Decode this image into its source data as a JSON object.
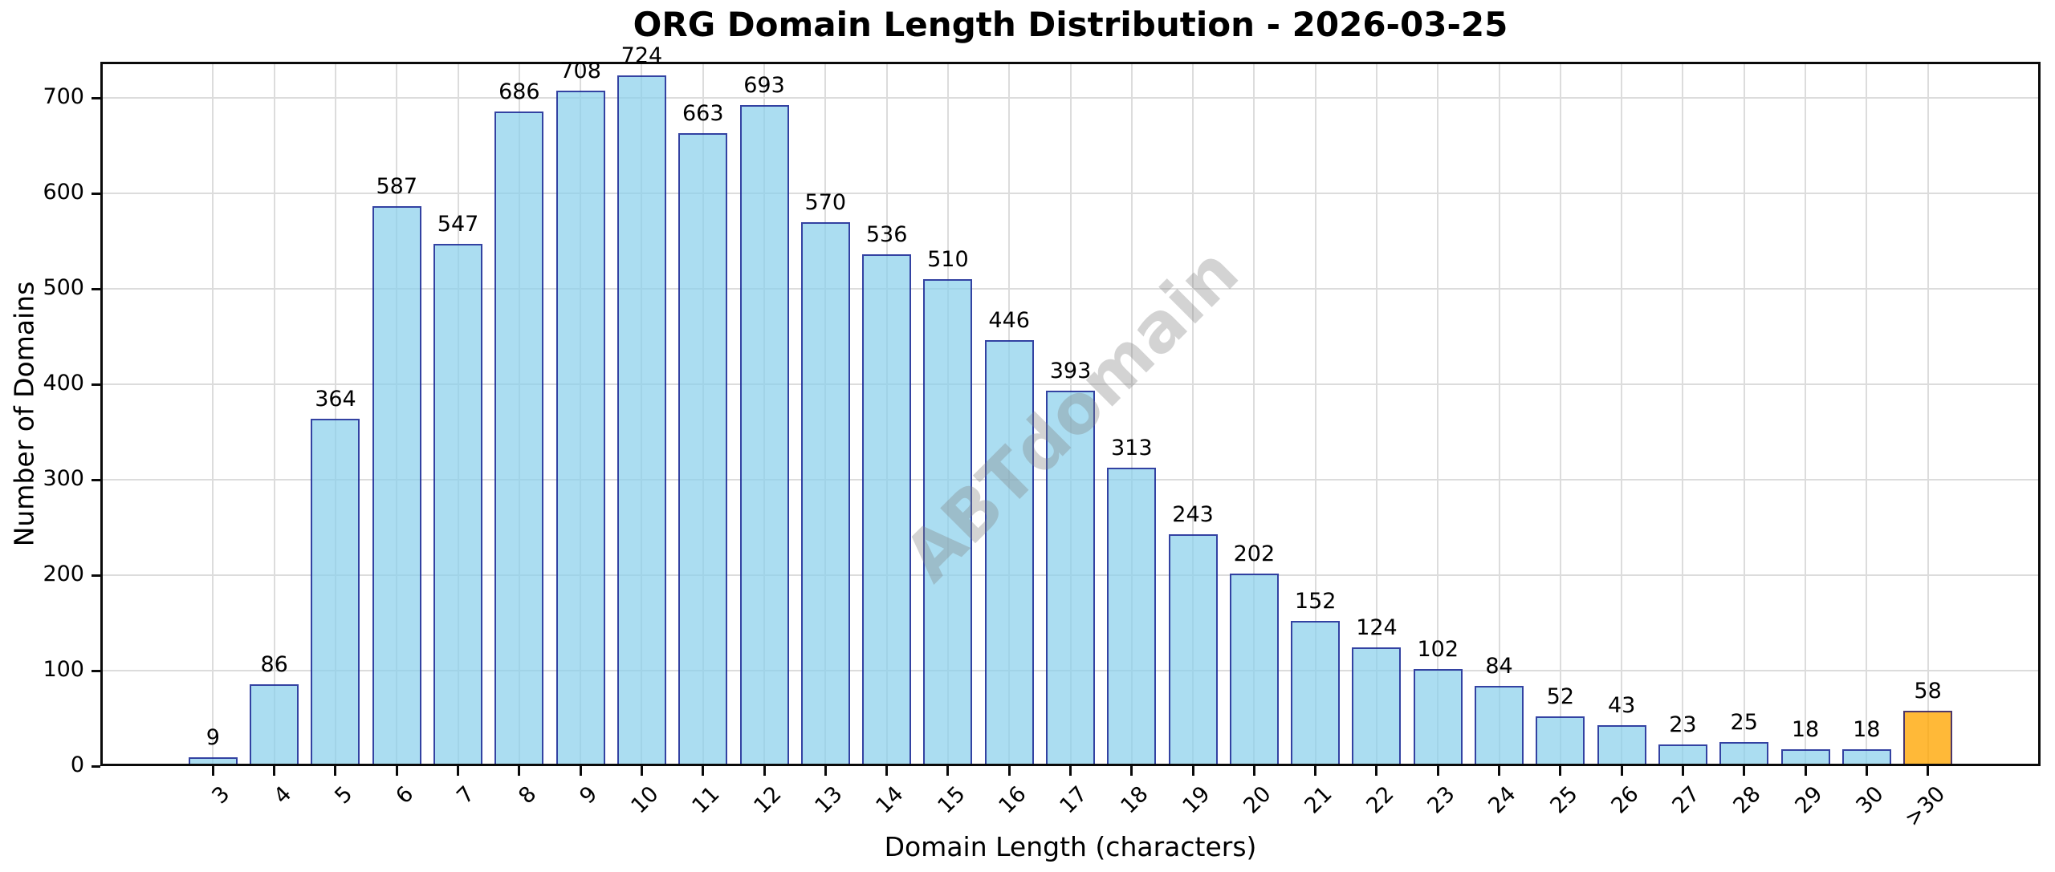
{
  "title": "ORG Domain Length Distribution - 2026-03-25",
  "chart_data": {
    "type": "bar",
    "title": "ORG Domain Length Distribution - 2026-03-25",
    "xlabel": "Domain Length (characters)",
    "ylabel": "Number of Domains",
    "categories": [
      "3",
      "4",
      "5",
      "6",
      "7",
      "8",
      "9",
      "10",
      "11",
      "12",
      "13",
      "14",
      "15",
      "16",
      "17",
      "18",
      "19",
      "20",
      "21",
      "22",
      "23",
      "24",
      "25",
      "26",
      "27",
      "28",
      "29",
      "30",
      ">30"
    ],
    "values": [
      9,
      86,
      364,
      587,
      547,
      686,
      708,
      724,
      663,
      693,
      570,
      536,
      510,
      446,
      393,
      313,
      243,
      202,
      152,
      124,
      102,
      84,
      52,
      43,
      23,
      25,
      18,
      18,
      58
    ],
    "value_labels_shown": true,
    "yticks": [
      0,
      100,
      200,
      300,
      400,
      500,
      600,
      700
    ],
    "ylim": [
      0,
      738
    ],
    "grid": true,
    "legend": false,
    "x_tick_rotation_deg": 45,
    "watermark": "ABTdomain",
    "style": {
      "bar_fill": "rgba(135,206,235,0.7)",
      "bar_edge": "rgba(0,0,128,0.7)",
      "highlight_category": ">30",
      "highlight_fill": "rgba(255,165,0,0.78)",
      "highlight_edge": "rgba(0,0,128,0.7)",
      "grid_color": "#dcdcdc",
      "spine_color": "#0a0a0a",
      "watermark_color": "rgba(128,128,128,0.35)",
      "text_color": "#000000"
    }
  }
}
